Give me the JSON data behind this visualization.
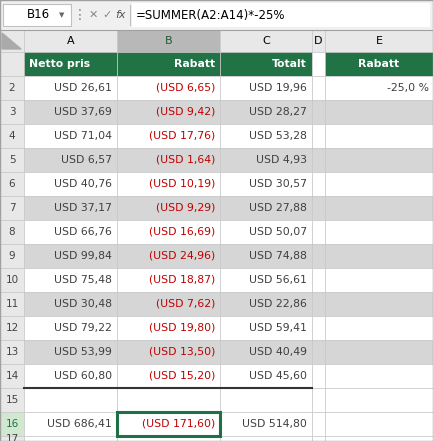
{
  "formula_bar_cell": "B16",
  "formula_bar_text": "=SUMMER(A2:A14)*-25%",
  "col_headers": [
    "A",
    "B",
    "C",
    "D",
    "E"
  ],
  "header_row": [
    "Netto pris",
    "Rabatt",
    "Totalt",
    "",
    "Rabatt"
  ],
  "data_rows": [
    [
      "USD 26,61",
      "(USD 6,65)",
      "USD 19,96",
      "",
      ""
    ],
    [
      "USD 37,69",
      "(USD 9,42)",
      "USD 28,27",
      "",
      ""
    ],
    [
      "USD 71,04",
      "(USD 17,76)",
      "USD 53,28",
      "",
      ""
    ],
    [
      "USD 6,57",
      "(USD 1,64)",
      "USD 4,93",
      "",
      ""
    ],
    [
      "USD 40,76",
      "(USD 10,19)",
      "USD 30,57",
      "",
      ""
    ],
    [
      "USD 37,17",
      "(USD 9,29)",
      "USD 27,88",
      "",
      ""
    ],
    [
      "USD 66,76",
      "(USD 16,69)",
      "USD 50,07",
      "",
      ""
    ],
    [
      "USD 99,84",
      "(USD 24,96)",
      "USD 74,88",
      "",
      ""
    ],
    [
      "USD 75,48",
      "(USD 18,87)",
      "USD 56,61",
      "",
      ""
    ],
    [
      "USD 30,48",
      "(USD 7,62)",
      "USD 22,86",
      "",
      ""
    ],
    [
      "USD 79,22",
      "(USD 19,80)",
      "USD 59,41",
      "",
      ""
    ],
    [
      "USD 53,99",
      "(USD 13,50)",
      "USD 40,49",
      "",
      ""
    ],
    [
      "USD 60,80",
      "(USD 15,20)",
      "USD 45,60",
      "",
      ""
    ],
    [
      "",
      "",
      "",
      "",
      ""
    ],
    [
      "USD 686,41",
      "(USD 171,60)",
      "USD 514,80",
      "",
      ""
    ]
  ],
  "e2_value": "-25,0 %",
  "header_bg": "#217346",
  "header_text": "#ffffff",
  "alt_row_bg": "#d6d6d6",
  "normal_row_bg": "#ffffff",
  "red_text": "#c00000",
  "dark_text": "#3f3f3f",
  "grid_color": "#c8c8c8",
  "formula_bg": "#f0f0f0",
  "active_cell_border": "#1e7145",
  "col_header_bg": "#e8e8e8",
  "col_header_selected_bg": "#b8b8b8",
  "row_num_selected_color": "#1e7145",
  "outer_border": "#a0a0a0"
}
